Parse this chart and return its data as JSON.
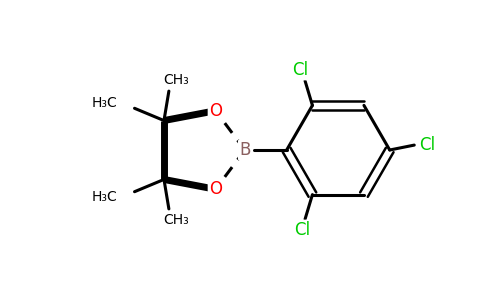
{
  "bg_color": "#ffffff",
  "bond_color": "#000000",
  "B_color": "#8b6060",
  "O_color": "#ff0000",
  "Cl_color": "#00cc00",
  "figsize": [
    4.84,
    3.0
  ],
  "dpi": 100,
  "xlim": [
    0,
    9.68
  ],
  "ylim": [
    0,
    6.0
  ]
}
